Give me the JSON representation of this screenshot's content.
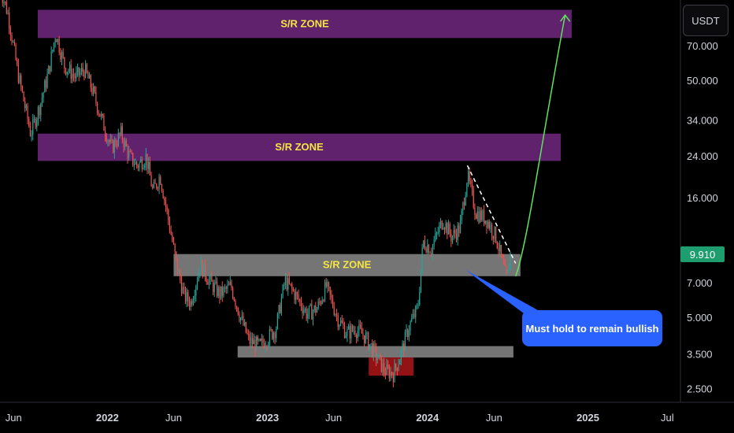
{
  "currency": "USDT",
  "last_price": "9.910",
  "callout_text": "Must hold to remain bullish",
  "colors": {
    "up": "#26a69a",
    "down": "#ef5350",
    "zone_purple": "#7b2a8c",
    "zone_grey": "#8a8a8a",
    "zone_red": "#a31418",
    "label": "#f5e642",
    "badge": "#1e9e6e",
    "callout": "#2962ff"
  },
  "chart_data": {
    "type": "candlestick",
    "y_scale": "log",
    "ylim": [
      2.2,
      110
    ],
    "y_ticks": [
      "2.500",
      "3.500",
      "5.000",
      "7.000",
      "9.910",
      "16.000",
      "24.000",
      "34.000",
      "50.000",
      "70.000"
    ],
    "x_range": [
      "2021-05-01",
      "2025-07-31"
    ],
    "x_ticks": [
      {
        "label": "Jun",
        "date": "2021-06-01",
        "bold": false
      },
      {
        "label": "2022",
        "date": "2022-01-01",
        "bold": true
      },
      {
        "label": "Jun",
        "date": "2022-06-01",
        "bold": false
      },
      {
        "label": "2023",
        "date": "2023-01-01",
        "bold": true
      },
      {
        "label": "Jun",
        "date": "2023-06-01",
        "bold": false
      },
      {
        "label": "2024",
        "date": "2024-01-01",
        "bold": true
      },
      {
        "label": "Jun",
        "date": "2024-06-01",
        "bold": false
      },
      {
        "label": "2025",
        "date": "2025-01-01",
        "bold": true
      },
      {
        "label": "Jul",
        "date": "2025-07-01",
        "bold": false
      }
    ],
    "price_path": [
      [
        "2021-05-01",
        125
      ],
      [
        "2021-05-20",
        95
      ],
      [
        "2021-06-10",
        55
      ],
      [
        "2021-07-10",
        30
      ],
      [
        "2021-08-01",
        40
      ],
      [
        "2021-08-20",
        55
      ],
      [
        "2021-09-05",
        80
      ],
      [
        "2021-09-25",
        58
      ],
      [
        "2021-10-20",
        52
      ],
      [
        "2021-11-10",
        56
      ],
      [
        "2021-12-01",
        44
      ],
      [
        "2021-12-20",
        34
      ],
      [
        "2022-01-10",
        26
      ],
      [
        "2022-02-01",
        30
      ],
      [
        "2022-02-20",
        24
      ],
      [
        "2022-03-10",
        22
      ],
      [
        "2022-03-30",
        24
      ],
      [
        "2022-04-15",
        17
      ],
      [
        "2022-05-01",
        20
      ],
      [
        "2022-05-20",
        13
      ],
      [
        "2022-06-10",
        8
      ],
      [
        "2022-06-25",
        6.2
      ],
      [
        "2022-07-10",
        5.8
      ],
      [
        "2022-08-01",
        8.4
      ],
      [
        "2022-08-25",
        7
      ],
      [
        "2022-09-15",
        6.3
      ],
      [
        "2022-10-10",
        6.8
      ],
      [
        "2022-11-01",
        5
      ],
      [
        "2022-11-20",
        4
      ],
      [
        "2022-12-15",
        3.8
      ],
      [
        "2023-01-20",
        4.5
      ],
      [
        "2023-02-10",
        7.2
      ],
      [
        "2023-03-10",
        6.1
      ],
      [
        "2023-04-01",
        5.2
      ],
      [
        "2023-04-25",
        5.5
      ],
      [
        "2023-05-15",
        6.8
      ],
      [
        "2023-06-10",
        5
      ],
      [
        "2023-07-01",
        4.3
      ],
      [
        "2023-07-20",
        4.5
      ],
      [
        "2023-08-10",
        4.2
      ],
      [
        "2023-09-01",
        3.6
      ],
      [
        "2023-09-25",
        3.0
      ],
      [
        "2023-10-15",
        2.9
      ],
      [
        "2023-11-01",
        3.5
      ],
      [
        "2023-11-20",
        4.6
      ],
      [
        "2023-12-10",
        5.5
      ],
      [
        "2023-12-22",
        10.5
      ],
      [
        "2024-01-10",
        9.8
      ],
      [
        "2024-02-05",
        13
      ],
      [
        "2024-02-25",
        11
      ],
      [
        "2024-03-15",
        12
      ],
      [
        "2024-04-01",
        20
      ],
      [
        "2024-04-20",
        14
      ],
      [
        "2024-05-15",
        13
      ],
      [
        "2024-06-05",
        11
      ],
      [
        "2024-06-20",
        8.5
      ],
      [
        "2024-06-30",
        7.2
      ],
      [
        "2024-07-10",
        9.91
      ]
    ],
    "zones": [
      {
        "label": "S/R ZONE",
        "color": "purple",
        "x1": "2021-05-01",
        "x2": "2024-11-25",
        "y_low": 76,
        "y_high": 100
      },
      {
        "label": "S/R ZONE",
        "color": "purple",
        "x1": "2021-05-01",
        "x2": "2024-10-31",
        "y_low": 23,
        "y_high": 30
      },
      {
        "label": "S/R ZONE",
        "color": "grey",
        "x1": "2022-06-01",
        "x2": "2024-07-31",
        "y_low": 7.5,
        "y_high": 9.3
      },
      {
        "label": "",
        "color": "grey",
        "x1": "2022-10-25",
        "x2": "2024-07-15",
        "y_low": 3.4,
        "y_high": 3.8
      },
      {
        "label": "",
        "color": "red",
        "x1": "2023-08-20",
        "x2": "2023-11-30",
        "y_low": 2.85,
        "y_high": 3.4
      }
    ],
    "trendline": [
      [
        "2024-04-01",
        22
      ],
      [
        "2024-07-20",
        8.5
      ]
    ],
    "projection": [
      [
        "2024-07-20",
        7.5
      ],
      [
        "2024-08-15",
        10
      ],
      [
        "2024-09-20",
        30
      ],
      [
        "2024-11-10",
        95
      ]
    ]
  }
}
